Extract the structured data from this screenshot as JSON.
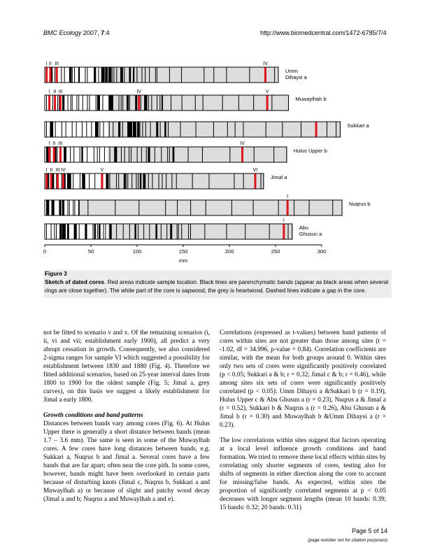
{
  "header": {
    "journal": "BMC Ecology",
    "year_vol": "2007,",
    "vol": "7",
    "article": ":4",
    "url": "http://www.biomedcentral.com/1472-6785/7/4"
  },
  "figure": {
    "axis_ticks": [
      "0",
      "50",
      "100",
      "150",
      "200",
      "250",
      "300"
    ],
    "axis_unit": "mm",
    "cores": [
      {
        "name": "Umm\nDihaysi a",
        "name_lines": [
          "Umm",
          "Dihaysi a"
        ],
        "length_mm": 253,
        "sapwood_mm": 0,
        "sample_labels": [
          {
            "text": "I",
            "pos": 2
          },
          {
            "text": "II",
            "pos": 6
          },
          {
            "text": "III",
            "pos": 13
          },
          {
            "text": "IV",
            "pos": 239
          }
        ],
        "red": [
          2,
          6,
          13,
          239
        ]
      },
      {
        "name_lines": [
          "Muwaylhah b"
        ],
        "length_mm": 264,
        "sapwood_mm": 0,
        "sample_labels": [
          {
            "text": "I",
            "pos": 5
          },
          {
            "text": "II",
            "pos": 11
          },
          {
            "text": "III",
            "pos": 17
          },
          {
            "text": "IV",
            "pos": 102
          },
          {
            "text": "V",
            "pos": 241
          }
        ],
        "red": [
          5,
          11,
          17,
          102,
          241
        ]
      },
      {
        "name_lines": [
          "Sukkari a"
        ],
        "length_mm": 320,
        "sapwood_mm": 0,
        "sample_labels": [],
        "red": [
          294
        ]
      },
      {
        "name_lines": [
          "Hulus Upper b"
        ],
        "length_mm": 262,
        "sapwood_mm": 0,
        "sample_labels": [
          {
            "text": "I",
            "pos": 5
          },
          {
            "text": "II",
            "pos": 10
          },
          {
            "text": "III",
            "pos": 17
          },
          {
            "text": "IV",
            "pos": 214
          }
        ],
        "red": [
          5,
          10,
          17,
          214
        ]
      },
      {
        "name_lines": [
          "Jimal a"
        ],
        "length_mm": 237,
        "sapwood_mm": 0,
        "sample_labels": [
          {
            "text": "I",
            "pos": 2
          },
          {
            "text": "II",
            "pos": 7
          },
          {
            "text": "III",
            "pos": 14
          },
          {
            "text": "IV",
            "pos": 20
          },
          {
            "text": "V",
            "pos": 62
          },
          {
            "text": "VI",
            "pos": 228
          }
        ],
        "red": [
          2,
          7,
          14,
          20,
          62,
          228
        ]
      },
      {
        "name_lines": [
          "Nuqrus b"
        ],
        "length_mm": 322,
        "sapwood_mm": 37,
        "sample_labels": [
          {
            "text": "I",
            "pos": 263
          }
        ],
        "red": [
          263
        ]
      },
      {
        "name_lines": [
          "Abu",
          "Ghusun a"
        ],
        "length_mm": 268,
        "sapwood_mm": 0,
        "sample_labels": [
          {
            "text": "I",
            "pos": 259
          }
        ],
        "red": [
          259
        ]
      }
    ]
  },
  "caption": {
    "title": "Figure 3",
    "bold_lead": "Sketch of dated cores",
    "text": ". Red areas indicate sample location. Black lines are parenchymatic bands (appear as black areas when several rings are close together). The white part of the core is sapwood, the grey is heartwood. Dashed lines indicate a gap in the core."
  },
  "body": {
    "left_p1": "not be fitted to scenario v and x. Of the remaining scenarios (i, ii, vi and vii; establishment early 1900), all predict a very abrupt cessation in growth. Consequently, we also considered 2-sigma ranges for sample VI which suggested a possibility for establishment between 1830 and 1880 (Fig. 4). Therefore we fitted additional scenarios, based on 25-year interval dates from 1800 to 1900 for the oldest sample (Fig. 5; Jimal a, grey curves), on this basis we suggest a likely establishment for Jimal a early 1800.",
    "left_heading": "Growth conditions and band patterns",
    "left_p2": "Distances between bands vary among cores (Fig. 6). At Hulus Upper there is generally a short distance between bands (mean 1.7 – 3.6 mm). The same is seen in some of the Muwaylhah cores. A few cores have long distances between bands, e.g. Sukkari a, Nuqrus b and Jimal a. Several cores have a few bands that are far apart; often near the core pith. In some cores, however, bands might have been overlooked in certain parts because of disturbing knots (Jimal c, Nuqrus b, Sukkari a and Muwaylhah a) or because of slight and patchy wood decay (Jimal a and b; Nuqrus a and Muwaylhah a and e).",
    "right_p1": "Correlations (expressed as t-values) between band patterns of cores within sites are not greater than those among sites (t = -1.02, df = 34.996, p-value = 0.84). Correlation coefficients are similar, with the mean for both groups around 0. Within sites only two sets of cores were significantly positively correlated (p < 0.05; Sukkari a & b; r = 0.32; Jimal c & b; r = 0.46), while among sites six sets of cores were significantly positively correlated (p < 0.05): Umm Dihaysi a &Sukkari b (r = 0.19), Hulus Upper c & Abu Ghusun a (r = 0.23), Nuqrus a & Jimal a (r = 0.52), Sukkari b & Nuqrus a (r = 0.26), Abu Ghusun a & Jimal b (r = 0.30) and Muwaylhah b &Umm Dihaysi a (r = 0.23).",
    "right_p2": "The low correlations within sites suggest that factors operating at a local level influence growth conditions and band formation. We tried to remove these local effects within sites by correlating only shorter segments of cores, testing also for shifts of segments in either direction along the core to account for missing/false bands. As expected, within sites the proportion of significantly correlated segments at p < 0.05 decreases with longer segment lengths (mean 10 bands: 0.39; 15 bands: 0.32; 20 bands: 0.31)"
  },
  "footer": {
    "page": "Page 5 of 14",
    "note": "(page number not for citation purposes)"
  },
  "colors": {
    "heartwood": "#dcdcdc",
    "sample": "#e0141c",
    "band": "#000000"
  }
}
